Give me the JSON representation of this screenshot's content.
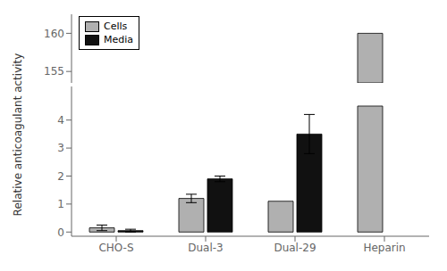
{
  "chart_data": [
    {
      "type": "bar",
      "categories": [
        "CHO-S",
        "Dual-3",
        "Dual-29",
        "Heparin"
      ],
      "series": [
        {
          "name": "Cells",
          "color": "#b0b0b0",
          "values": [
            null,
            null,
            null,
            160.0
          ]
        },
        {
          "name": "Media",
          "color": "#111111",
          "values": [
            null,
            null,
            null,
            null
          ]
        }
      ],
      "ylim": [
        153.5,
        162.5
      ],
      "yticks": [
        155,
        160
      ],
      "legend": "upper left",
      "tick_labels": "y"
    },
    {
      "type": "bar",
      "ylabel": "Relative anticoagulant activity",
      "categories": [
        "CHO-S",
        "Dual-3",
        "Dual-29",
        "Heparin"
      ],
      "series": [
        {
          "name": "Cells",
          "color": "#b0b0b0",
          "values": [
            0.15,
            1.2,
            1.1,
            4.5
          ],
          "errors": [
            0.1,
            0.15,
            0.0,
            0.0
          ]
        },
        {
          "name": "Media",
          "color": "#111111",
          "values": [
            0.05,
            1.9,
            3.5,
            0.0
          ],
          "errors": [
            0.05,
            0.1,
            0.7,
            0.0
          ]
        }
      ],
      "ylim": [
        -0.15,
        5.2
      ],
      "yticks": [
        0,
        1,
        2,
        3,
        4
      ]
    }
  ]
}
